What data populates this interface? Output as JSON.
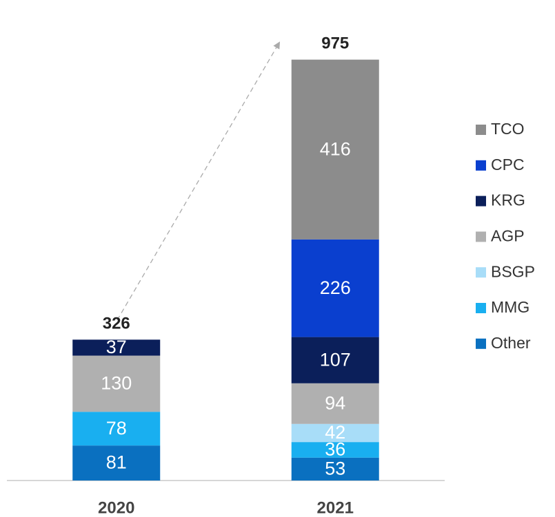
{
  "chart_data": {
    "type": "stacked_bar",
    "categories": [
      "2020",
      "2021"
    ],
    "totals": [
      326,
      975
    ],
    "series": [
      {
        "name": "Other",
        "color": "#0a70c0",
        "values": [
          81,
          53
        ]
      },
      {
        "name": "MMG",
        "color": "#19aff0",
        "values": [
          78,
          36
        ]
      },
      {
        "name": "BSGP",
        "color": "#a8ddf8",
        "values": [
          null,
          42
        ]
      },
      {
        "name": "AGP",
        "color": "#b0b0b0",
        "values": [
          130,
          94
        ]
      },
      {
        "name": "KRG",
        "color": "#0b1f5a",
        "values": [
          37,
          107
        ]
      },
      {
        "name": "CPC",
        "color": "#0a3fcf",
        "values": [
          null,
          226
        ]
      },
      {
        "name": "TCO",
        "color": "#8c8c8c",
        "values": [
          null,
          416
        ]
      }
    ]
  }
}
